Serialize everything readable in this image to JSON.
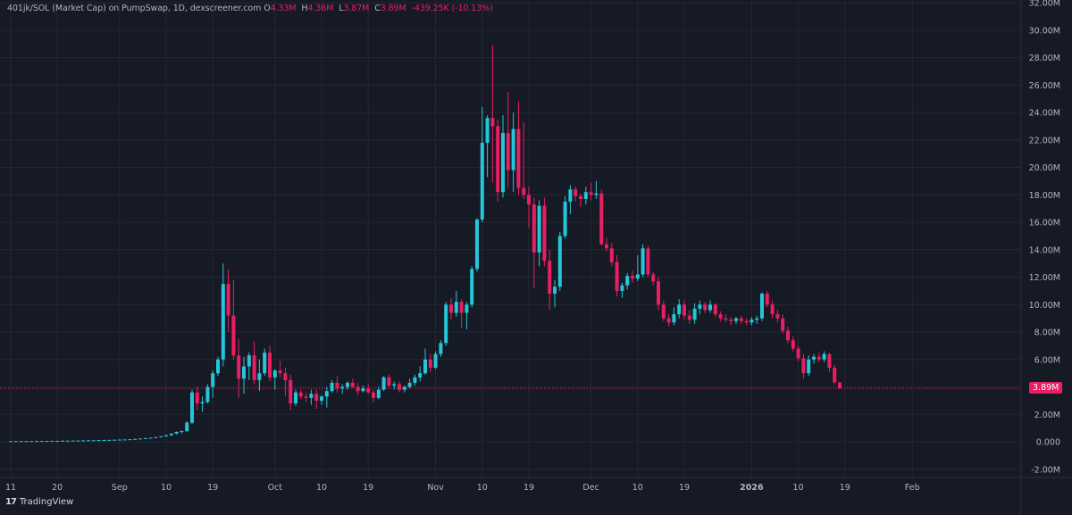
{
  "header": {
    "symbol": "401jk/SOL (Market Cap) on PumpSwap, 1D, dexscreener.com",
    "o_label": "O",
    "o_value": "4.33M",
    "h_label": "H",
    "h_value": "4.36M",
    "l_label": "L",
    "l_value": "3.87M",
    "c_label": "C",
    "c_value": "3.89M",
    "change": "-439.25K (-10.13%)"
  },
  "branding": {
    "logo_mark": "17",
    "logo_text": "TradingView"
  },
  "colors": {
    "background": "#161a25",
    "grid": "#232733",
    "up": "#26c6da",
    "down": "#e91e63",
    "axis_text": "#b2b5be",
    "price_line": "#e91e63"
  },
  "chart_data": {
    "type": "candlestick",
    "title": "401jk/SOL (Market Cap) on PumpSwap, 1D, dexscreener.com",
    "last_price": 3.89,
    "last_price_label": "3.89M",
    "ylim": [
      -2.6,
      32.2
    ],
    "y_ticks": [
      {
        "v": 32,
        "label": "32.00M"
      },
      {
        "v": 30,
        "label": "30.00M"
      },
      {
        "v": 28,
        "label": "28.00M"
      },
      {
        "v": 26,
        "label": "26.00M"
      },
      {
        "v": 24,
        "label": "24.00M"
      },
      {
        "v": 22,
        "label": "22.00M"
      },
      {
        "v": 20,
        "label": "20.00M"
      },
      {
        "v": 18,
        "label": "18.00M"
      },
      {
        "v": 16,
        "label": "16.00M"
      },
      {
        "v": 14,
        "label": "14.00M"
      },
      {
        "v": 12,
        "label": "12.00M"
      },
      {
        "v": 10,
        "label": "10.00M"
      },
      {
        "v": 8,
        "label": "8.00M"
      },
      {
        "v": 6,
        "label": "6.00M"
      },
      {
        "v": 4,
        "label": "4.00M"
      },
      {
        "v": 2,
        "label": "2.00M"
      },
      {
        "v": 0,
        "label": "0.000"
      },
      {
        "v": -2,
        "label": "-2.00M"
      }
    ],
    "x_ticks": [
      {
        "day": 0,
        "label": "11"
      },
      {
        "day": 9,
        "label": "20"
      },
      {
        "day": 21,
        "label": "Sep"
      },
      {
        "day": 30,
        "label": "10"
      },
      {
        "day": 39,
        "label": "19"
      },
      {
        "day": 51,
        "label": "Oct"
      },
      {
        "day": 60,
        "label": "10"
      },
      {
        "day": 69,
        "label": "19"
      },
      {
        "day": 82,
        "label": "Nov"
      },
      {
        "day": 91,
        "label": "10"
      },
      {
        "day": 100,
        "label": "19"
      },
      {
        "day": 112,
        "label": "Dec"
      },
      {
        "day": 121,
        "label": "10"
      },
      {
        "day": 130,
        "label": "19"
      },
      {
        "day": 143,
        "label": "2026",
        "bold": true
      },
      {
        "day": 152,
        "label": "10"
      },
      {
        "day": 161,
        "label": "19"
      },
      {
        "day": 174,
        "label": "Feb"
      }
    ],
    "candles": [
      [
        0.05,
        0.06,
        0.04,
        0.05
      ],
      [
        0.05,
        0.06,
        0.04,
        0.05
      ],
      [
        0.05,
        0.06,
        0.04,
        0.05
      ],
      [
        0.05,
        0.06,
        0.04,
        0.05
      ],
      [
        0.05,
        0.06,
        0.04,
        0.05
      ],
      [
        0.05,
        0.07,
        0.04,
        0.06
      ],
      [
        0.06,
        0.07,
        0.05,
        0.06
      ],
      [
        0.06,
        0.07,
        0.05,
        0.06
      ],
      [
        0.06,
        0.08,
        0.05,
        0.07
      ],
      [
        0.07,
        0.08,
        0.06,
        0.07
      ],
      [
        0.07,
        0.09,
        0.06,
        0.08
      ],
      [
        0.08,
        0.09,
        0.07,
        0.08
      ],
      [
        0.08,
        0.1,
        0.07,
        0.09
      ],
      [
        0.09,
        0.1,
        0.08,
        0.09
      ],
      [
        0.09,
        0.11,
        0.08,
        0.1
      ],
      [
        0.1,
        0.12,
        0.09,
        0.11
      ],
      [
        0.11,
        0.12,
        0.1,
        0.11
      ],
      [
        0.11,
        0.13,
        0.1,
        0.12
      ],
      [
        0.12,
        0.14,
        0.11,
        0.13
      ],
      [
        0.13,
        0.15,
        0.12,
        0.14
      ],
      [
        0.14,
        0.16,
        0.13,
        0.15
      ],
      [
        0.15,
        0.17,
        0.14,
        0.16
      ],
      [
        0.16,
        0.18,
        0.15,
        0.17
      ],
      [
        0.17,
        0.2,
        0.16,
        0.19
      ],
      [
        0.19,
        0.22,
        0.18,
        0.21
      ],
      [
        0.21,
        0.25,
        0.2,
        0.24
      ],
      [
        0.24,
        0.28,
        0.22,
        0.27
      ],
      [
        0.27,
        0.31,
        0.25,
        0.3
      ],
      [
        0.3,
        0.36,
        0.28,
        0.34
      ],
      [
        0.34,
        0.42,
        0.32,
        0.4
      ],
      [
        0.4,
        0.5,
        0.38,
        0.48
      ],
      [
        0.48,
        0.62,
        0.45,
        0.6
      ],
      [
        0.6,
        0.75,
        0.55,
        0.72
      ],
      [
        0.72,
        0.82,
        0.62,
        0.78
      ],
      [
        0.78,
        1.5,
        0.7,
        1.4
      ],
      [
        1.4,
        3.8,
        1.3,
        3.6
      ],
      [
        3.6,
        4.0,
        2.3,
        2.8
      ],
      [
        2.8,
        3.3,
        2.2,
        2.9
      ],
      [
        2.9,
        4.2,
        2.8,
        4.0
      ],
      [
        4.0,
        5.2,
        3.2,
        5.0
      ],
      [
        5.0,
        6.2,
        4.8,
        6.0
      ],
      [
        6.0,
        13.0,
        5.5,
        11.5
      ],
      [
        11.5,
        12.6,
        8.0,
        9.2
      ],
      [
        9.2,
        11.8,
        6.0,
        6.3
      ],
      [
        6.3,
        7.5,
        3.2,
        4.6
      ],
      [
        4.6,
        6.2,
        3.5,
        5.5
      ],
      [
        5.5,
        6.5,
        4.5,
        6.3
      ],
      [
        6.3,
        7.3,
        4.2,
        4.5
      ],
      [
        4.5,
        6.0,
        3.7,
        5.0
      ],
      [
        5.0,
        6.8,
        4.8,
        6.5
      ],
      [
        6.5,
        7.0,
        4.4,
        4.7
      ],
      [
        4.7,
        5.3,
        3.8,
        5.2
      ],
      [
        5.2,
        5.9,
        4.7,
        5.0
      ],
      [
        5.0,
        5.4,
        3.3,
        4.5
      ],
      [
        4.5,
        4.9,
        2.3,
        2.8
      ],
      [
        2.8,
        3.8,
        2.6,
        3.6
      ],
      [
        3.6,
        3.8,
        3.1,
        3.3
      ],
      [
        3.3,
        3.6,
        2.9,
        3.2
      ],
      [
        3.2,
        3.8,
        2.7,
        3.5
      ],
      [
        3.5,
        3.8,
        2.4,
        3.0
      ],
      [
        3.0,
        3.4,
        2.7,
        3.3
      ],
      [
        3.3,
        4.0,
        2.5,
        3.7
      ],
      [
        3.7,
        4.5,
        3.6,
        4.3
      ],
      [
        4.3,
        4.8,
        3.6,
        3.9
      ],
      [
        3.9,
        4.2,
        3.5,
        4.0
      ],
      [
        4.0,
        4.4,
        3.8,
        4.3
      ],
      [
        4.3,
        4.6,
        3.9,
        4.0
      ],
      [
        4.0,
        4.3,
        3.4,
        3.7
      ],
      [
        3.7,
        4.1,
        3.6,
        3.9
      ],
      [
        3.9,
        4.2,
        3.5,
        3.6
      ],
      [
        3.6,
        3.8,
        2.9,
        3.2
      ],
      [
        3.2,
        4.0,
        3.1,
        3.8
      ],
      [
        3.8,
        4.8,
        3.7,
        4.7
      ],
      [
        4.7,
        4.9,
        3.9,
        4.1
      ],
      [
        4.1,
        4.4,
        3.8,
        4.2
      ],
      [
        4.2,
        4.4,
        3.6,
        3.8
      ],
      [
        3.8,
        4.1,
        3.6,
        4.0
      ],
      [
        4.0,
        4.6,
        3.9,
        4.3
      ],
      [
        4.3,
        4.9,
        4.1,
        4.7
      ],
      [
        4.7,
        5.5,
        4.4,
        5.0
      ],
      [
        5.0,
        6.8,
        4.9,
        6.0
      ],
      [
        6.0,
        6.4,
        5.1,
        5.4
      ],
      [
        5.4,
        6.6,
        5.3,
        6.4
      ],
      [
        6.4,
        7.4,
        6.2,
        7.2
      ],
      [
        7.2,
        10.2,
        7.0,
        10.0
      ],
      [
        10.0,
        10.5,
        8.9,
        9.4
      ],
      [
        9.4,
        11.0,
        9.1,
        10.2
      ],
      [
        10.2,
        10.4,
        8.3,
        9.4
      ],
      [
        9.4,
        10.2,
        8.2,
        10.0
      ],
      [
        10.0,
        12.8,
        9.8,
        12.6
      ],
      [
        12.6,
        16.3,
        12.4,
        16.2
      ],
      [
        16.2,
        24.4,
        16.0,
        21.8
      ],
      [
        21.8,
        23.8,
        19.3,
        23.6
      ],
      [
        23.6,
        28.9,
        18.9,
        23.0
      ],
      [
        23.0,
        23.5,
        17.5,
        18.2
      ],
      [
        18.2,
        23.8,
        17.8,
        22.5
      ],
      [
        22.5,
        25.5,
        18.5,
        19.8
      ],
      [
        19.8,
        24.0,
        18.2,
        22.8
      ],
      [
        22.8,
        24.8,
        18.0,
        18.5
      ],
      [
        18.5,
        23.3,
        17.7,
        18.0
      ],
      [
        18.0,
        18.6,
        15.6,
        17.3
      ],
      [
        17.3,
        17.8,
        11.2,
        13.8
      ],
      [
        13.8,
        17.6,
        12.8,
        17.2
      ],
      [
        17.2,
        17.8,
        12.8,
        13.2
      ],
      [
        13.2,
        14.0,
        9.6,
        10.8
      ],
      [
        10.8,
        11.8,
        9.8,
        11.3
      ],
      [
        11.3,
        15.3,
        11.0,
        15.0
      ],
      [
        15.0,
        17.9,
        14.8,
        17.5
      ],
      [
        17.5,
        18.7,
        16.6,
        18.4
      ],
      [
        18.4,
        18.6,
        17.5,
        17.9
      ],
      [
        17.9,
        18.1,
        17.1,
        17.7
      ],
      [
        17.7,
        18.6,
        17.3,
        18.2
      ],
      [
        18.2,
        18.9,
        17.6,
        18.0
      ],
      [
        18.0,
        19.0,
        17.7,
        18.1
      ],
      [
        18.1,
        18.4,
        14.3,
        14.4
      ],
      [
        14.4,
        14.9,
        13.9,
        14.1
      ],
      [
        14.1,
        14.5,
        12.8,
        13.1
      ],
      [
        13.1,
        13.6,
        10.6,
        11.0
      ],
      [
        11.0,
        11.6,
        10.5,
        11.4
      ],
      [
        11.4,
        12.3,
        11.1,
        12.1
      ],
      [
        12.1,
        12.5,
        11.6,
        11.9
      ],
      [
        11.9,
        13.6,
        11.7,
        12.2
      ],
      [
        12.2,
        14.4,
        12.0,
        14.1
      ],
      [
        14.1,
        14.3,
        12.0,
        12.2
      ],
      [
        12.2,
        12.4,
        11.4,
        11.7
      ],
      [
        11.7,
        12.0,
        9.6,
        10.0
      ],
      [
        10.0,
        10.3,
        8.8,
        9.0
      ],
      [
        9.0,
        9.3,
        8.4,
        8.7
      ],
      [
        8.7,
        9.8,
        8.5,
        9.3
      ],
      [
        9.3,
        10.4,
        9.0,
        10.0
      ],
      [
        10.0,
        10.3,
        8.9,
        9.2
      ],
      [
        9.2,
        9.6,
        8.6,
        8.9
      ],
      [
        8.9,
        10.1,
        8.6,
        9.7
      ],
      [
        9.7,
        10.3,
        9.3,
        10.0
      ],
      [
        10.0,
        10.2,
        9.4,
        9.6
      ],
      [
        9.6,
        10.3,
        9.4,
        10.0
      ],
      [
        10.0,
        10.1,
        9.1,
        9.3
      ],
      [
        9.3,
        9.5,
        8.8,
        9.0
      ],
      [
        9.0,
        9.3,
        8.7,
        8.9
      ],
      [
        8.9,
        9.1,
        8.5,
        8.8
      ],
      [
        8.8,
        9.1,
        8.6,
        9.0
      ],
      [
        9.0,
        9.2,
        8.6,
        8.8
      ],
      [
        8.8,
        9.0,
        8.5,
        8.7
      ],
      [
        8.7,
        9.1,
        8.5,
        8.9
      ],
      [
        8.9,
        9.2,
        8.6,
        9.0
      ],
      [
        9.0,
        10.9,
        8.8,
        10.8
      ],
      [
        10.8,
        11.0,
        9.8,
        10.0
      ],
      [
        10.0,
        10.3,
        9.0,
        9.3
      ],
      [
        9.3,
        9.6,
        8.7,
        9.0
      ],
      [
        9.0,
        9.3,
        7.9,
        8.1
      ],
      [
        8.1,
        8.4,
        7.2,
        7.4
      ],
      [
        7.4,
        7.7,
        6.6,
        6.8
      ],
      [
        6.8,
        7.0,
        5.9,
        6.1
      ],
      [
        6.1,
        6.4,
        4.6,
        5.0
      ],
      [
        5.0,
        6.3,
        4.8,
        6.0
      ],
      [
        6.0,
        6.4,
        5.7,
        6.2
      ],
      [
        6.2,
        6.5,
        5.8,
        6.0
      ],
      [
        6.0,
        6.6,
        5.8,
        6.4
      ],
      [
        6.4,
        6.5,
        5.1,
        5.4
      ],
      [
        5.4,
        5.6,
        4.2,
        4.33
      ],
      [
        4.33,
        4.36,
        3.87,
        3.89
      ]
    ]
  }
}
